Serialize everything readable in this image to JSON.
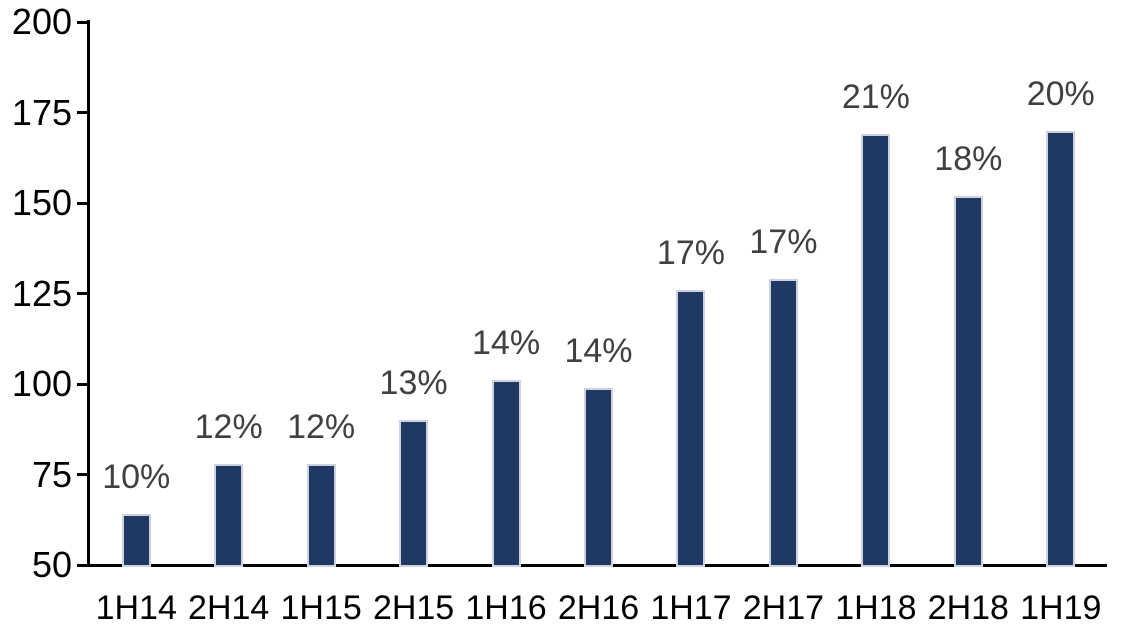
{
  "chart_data": {
    "type": "bar",
    "title": "",
    "xlabel": "",
    "ylabel": "",
    "categories": [
      "1H14",
      "2H14",
      "1H15",
      "2H15",
      "1H16",
      "2H16",
      "1H17",
      "2H17",
      "1H18",
      "2H18",
      "1H19"
    ],
    "values": [
      64,
      78,
      78,
      90,
      101,
      99,
      126,
      129,
      169,
      152,
      170
    ],
    "bar_labels": [
      "10%",
      "12%",
      "12%",
      "13%",
      "14%",
      "14%",
      "17%",
      "17%",
      "21%",
      "18%",
      "20%"
    ],
    "ylim": [
      50,
      200
    ],
    "yticks": [
      50,
      75,
      100,
      125,
      150,
      175,
      200
    ],
    "grid": false,
    "legend": "none",
    "colors": {
      "bar_fill": "#1f3864",
      "bar_border": "#ccd3de",
      "data_label": "#404040",
      "axis_line": "#000000",
      "tick_label": "#000000",
      "background": "#ffffff"
    }
  }
}
